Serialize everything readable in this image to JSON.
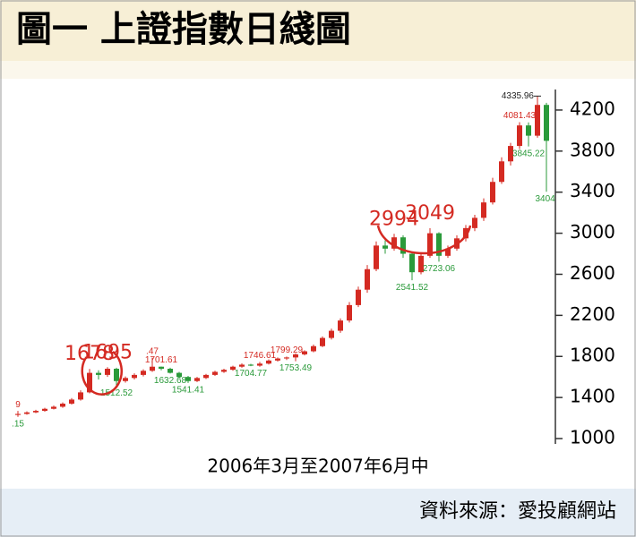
{
  "chart_data": {
    "type": "candlestick",
    "title": "圖一 上證指數日綫圖",
    "xlabel": "2006年3月至2007年6月中",
    "source": "資料來源：愛投顧網站",
    "up_color": "#d42a22",
    "down_color": "#2a9a3a",
    "label_up_color": "#d42a22",
    "label_down_color": "#2a9a3a",
    "mark_color": "#d42a22",
    "ylim": [
      960,
      4400
    ],
    "yticks": [
      1000,
      1400,
      1800,
      2200,
      2600,
      3000,
      3400,
      3800,
      4200
    ],
    "candles": [
      {
        "o": 1230,
        "h": 1269,
        "l": 1211.15,
        "c": 1240,
        "h_label": "9",
        "l_label": ".15"
      },
      {
        "o": 1240,
        "h": 1265,
        "l": 1232,
        "c": 1255
      },
      {
        "o": 1255,
        "h": 1280,
        "l": 1248,
        "c": 1270
      },
      {
        "o": 1270,
        "h": 1300,
        "l": 1262,
        "c": 1290
      },
      {
        "o": 1290,
        "h": 1322,
        "l": 1283,
        "c": 1310
      },
      {
        "o": 1310,
        "h": 1352,
        "l": 1300,
        "c": 1340
      },
      {
        "o": 1340,
        "h": 1395,
        "l": 1330,
        "c": 1380
      },
      {
        "o": 1380,
        "h": 1470,
        "l": 1370,
        "c": 1450
      },
      {
        "o": 1450,
        "h": 1678,
        "l": 1440,
        "c": 1640,
        "big_label": "1678"
      },
      {
        "o": 1640,
        "h": 1665,
        "l": 1575,
        "c": 1620
      },
      {
        "o": 1620,
        "h": 1695,
        "l": 1600,
        "c": 1680,
        "big_label": "1695"
      },
      {
        "o": 1680,
        "h": 1690,
        "l": 1512.52,
        "c": 1560,
        "l_label": "1512.52"
      },
      {
        "o": 1560,
        "h": 1605,
        "l": 1545,
        "c": 1590
      },
      {
        "o": 1590,
        "h": 1635,
        "l": 1575,
        "c": 1620
      },
      {
        "o": 1620,
        "h": 1675,
        "l": 1605,
        "c": 1660
      },
      {
        "o": 1660,
        "h": 1787.47,
        "l": 1650,
        "c": 1700,
        "h_label": ".47"
      },
      {
        "o": 1700,
        "h": 1701.61,
        "l": 1665,
        "c": 1680,
        "h_label": "1701.61"
      },
      {
        "o": 1680,
        "h": 1690,
        "l": 1632.68,
        "c": 1640,
        "l_label": "1632.68"
      },
      {
        "o": 1640,
        "h": 1650,
        "l": 1585,
        "c": 1600
      },
      {
        "o": 1600,
        "h": 1610,
        "l": 1541.41,
        "c": 1560,
        "l_label": "1541.41"
      },
      {
        "o": 1560,
        "h": 1600,
        "l": 1550,
        "c": 1590
      },
      {
        "o": 1590,
        "h": 1630,
        "l": 1580,
        "c": 1620
      },
      {
        "o": 1620,
        "h": 1660,
        "l": 1610,
        "c": 1650
      },
      {
        "o": 1650,
        "h": 1680,
        "l": 1640,
        "c": 1670
      },
      {
        "o": 1670,
        "h": 1710,
        "l": 1660,
        "c": 1700
      },
      {
        "o": 1700,
        "h": 1732,
        "l": 1690,
        "c": 1720
      },
      {
        "o": 1720,
        "h": 1728,
        "l": 1704.77,
        "c": 1710,
        "l_label": "1704.77"
      },
      {
        "o": 1710,
        "h": 1746.61,
        "l": 1700,
        "c": 1730,
        "h_label": "1746.61"
      },
      {
        "o": 1730,
        "h": 1770,
        "l": 1722,
        "c": 1760
      },
      {
        "o": 1760,
        "h": 1790,
        "l": 1750,
        "c": 1780
      },
      {
        "o": 1780,
        "h": 1799.29,
        "l": 1765,
        "c": 1790,
        "h_label": "1799.29"
      },
      {
        "o": 1790,
        "h": 1830,
        "l": 1753.49,
        "c": 1820,
        "l_label": "1753.49"
      },
      {
        "o": 1820,
        "h": 1860,
        "l": 1810,
        "c": 1850
      },
      {
        "o": 1850,
        "h": 1915,
        "l": 1840,
        "c": 1900
      },
      {
        "o": 1900,
        "h": 1995,
        "l": 1890,
        "c": 1980
      },
      {
        "o": 1980,
        "h": 2070,
        "l": 1965,
        "c": 2050
      },
      {
        "o": 2050,
        "h": 2170,
        "l": 2030,
        "c": 2150
      },
      {
        "o": 2150,
        "h": 2330,
        "l": 2130,
        "c": 2300
      },
      {
        "o": 2300,
        "h": 2480,
        "l": 2280,
        "c": 2450
      },
      {
        "o": 2450,
        "h": 2690,
        "l": 2420,
        "c": 2650
      },
      {
        "o": 2650,
        "h": 2920,
        "l": 2630,
        "c": 2880
      },
      {
        "o": 2880,
        "h": 2930,
        "l": 2800,
        "c": 2850
      },
      {
        "o": 2850,
        "h": 2994,
        "l": 2830,
        "c": 2960,
        "big_label": "2994"
      },
      {
        "o": 2960,
        "h": 2980,
        "l": 2760,
        "c": 2800
      },
      {
        "o": 2800,
        "h": 2820,
        "l": 2541.52,
        "c": 2620,
        "l_label": "2541.52"
      },
      {
        "o": 2620,
        "h": 2800,
        "l": 2600,
        "c": 2780
      },
      {
        "o": 2780,
        "h": 3049,
        "l": 2760,
        "c": 3000,
        "big_label": "3049"
      },
      {
        "o": 3000,
        "h": 3010,
        "l": 2723.06,
        "c": 2780,
        "l_label": "2723.06"
      },
      {
        "o": 2780,
        "h": 2880,
        "l": 2760,
        "c": 2850
      },
      {
        "o": 2850,
        "h": 2980,
        "l": 2830,
        "c": 2950
      },
      {
        "o": 2950,
        "h": 3080,
        "l": 2920,
        "c": 3050
      },
      {
        "o": 3050,
        "h": 3180,
        "l": 3020,
        "c": 3150
      },
      {
        "o": 3150,
        "h": 3340,
        "l": 3120,
        "c": 3300
      },
      {
        "o": 3300,
        "h": 3540,
        "l": 3280,
        "c": 3500
      },
      {
        "o": 3500,
        "h": 3740,
        "l": 3480,
        "c": 3700
      },
      {
        "o": 3700,
        "h": 3880,
        "l": 3660,
        "c": 3850
      },
      {
        "o": 3850,
        "h": 4081.43,
        "l": 3820,
        "c": 4050,
        "h_label": "4081.43"
      },
      {
        "o": 4050,
        "h": 4080,
        "l": 3845.22,
        "c": 3950,
        "l_label": "3845.22"
      },
      {
        "o": 3950,
        "h": 4335.96,
        "l": 3930,
        "c": 4250,
        "top_label": "4335.96"
      },
      {
        "o": 4250,
        "h": 4270,
        "l": 3404,
        "c": 3900,
        "l_label": "3404."
      }
    ]
  }
}
